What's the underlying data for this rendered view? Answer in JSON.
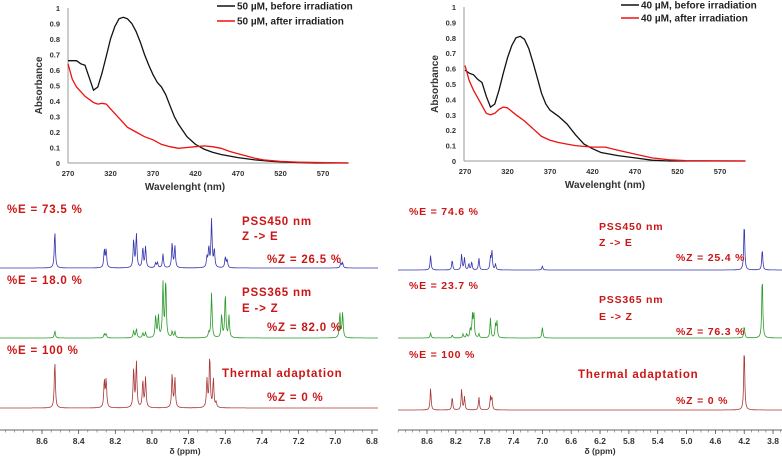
{
  "chart_data": [
    {
      "type": "line",
      "xlabel": "Wavelenght (nm)",
      "ylabel": "Absorbance",
      "xlim": [
        270,
        600
      ],
      "ylim": [
        0,
        1
      ],
      "xticks": [
        "270",
        "320",
        "370",
        "420",
        "470",
        "520",
        "570"
      ],
      "yticks": [
        "0",
        "0.1",
        "0.2",
        "0.3",
        "0.4",
        "0.5",
        "0.6",
        "0.7",
        "0.8",
        "0.9",
        "1"
      ],
      "legend_position": "top-right",
      "series": [
        {
          "name": "50 µM, before irradiation",
          "color": "#111111",
          "x": [
            270,
            275,
            280,
            285,
            290,
            295,
            300,
            305,
            310,
            315,
            320,
            325,
            330,
            335,
            340,
            345,
            350,
            355,
            360,
            365,
            370,
            375,
            380,
            385,
            390,
            395,
            400,
            410,
            420,
            430,
            440,
            450,
            470,
            490,
            510,
            530,
            560,
            600
          ],
          "y": [
            0.66,
            0.66,
            0.66,
            0.64,
            0.63,
            0.55,
            0.47,
            0.49,
            0.58,
            0.69,
            0.8,
            0.88,
            0.93,
            0.94,
            0.93,
            0.9,
            0.85,
            0.78,
            0.7,
            0.63,
            0.57,
            0.52,
            0.49,
            0.44,
            0.37,
            0.3,
            0.25,
            0.17,
            0.12,
            0.09,
            0.07,
            0.055,
            0.035,
            0.02,
            0.01,
            0.005,
            0,
            0
          ]
        },
        {
          "name": "50 µM, after irradiation",
          "color": "#ee1111",
          "x": [
            270,
            275,
            280,
            290,
            300,
            305,
            310,
            315,
            320,
            330,
            340,
            350,
            360,
            370,
            380,
            390,
            400,
            410,
            420,
            430,
            440,
            450,
            460,
            470,
            480,
            490,
            500,
            520,
            540,
            600
          ],
          "y": [
            0.64,
            0.54,
            0.49,
            0.43,
            0.39,
            0.38,
            0.385,
            0.38,
            0.35,
            0.29,
            0.23,
            0.2,
            0.17,
            0.15,
            0.12,
            0.105,
            0.095,
            0.1,
            0.105,
            0.11,
            0.105,
            0.095,
            0.075,
            0.06,
            0.045,
            0.03,
            0.02,
            0.01,
            0.005,
            0
          ]
        }
      ]
    },
    {
      "type": "line",
      "xlabel": "Wavelenght (nm)",
      "ylabel": "Absorbance",
      "xlim": [
        270,
        600
      ],
      "ylim": [
        0,
        1
      ],
      "xticks": [
        "270",
        "320",
        "370",
        "420",
        "470",
        "520",
        "570"
      ],
      "yticks": [
        "0",
        "0.1",
        "0.2",
        "0.3",
        "0.4",
        "0.5",
        "0.6",
        "0.7",
        "0.8",
        "0.9",
        "1"
      ],
      "legend_position": "top-right",
      "series": [
        {
          "name": "40 µM, before irradiation",
          "color": "#111111",
          "x": [
            270,
            275,
            280,
            285,
            290,
            295,
            300,
            305,
            310,
            315,
            320,
            325,
            330,
            335,
            340,
            345,
            350,
            355,
            360,
            365,
            370,
            380,
            390,
            400,
            410,
            420,
            430,
            450,
            470,
            490,
            510,
            600
          ],
          "y": [
            0.59,
            0.57,
            0.56,
            0.53,
            0.51,
            0.42,
            0.35,
            0.37,
            0.46,
            0.57,
            0.67,
            0.75,
            0.8,
            0.81,
            0.79,
            0.73,
            0.64,
            0.54,
            0.44,
            0.37,
            0.33,
            0.29,
            0.24,
            0.17,
            0.11,
            0.08,
            0.055,
            0.035,
            0.02,
            0.005,
            0,
            0
          ]
        },
        {
          "name": "40 µM, after irradiation",
          "color": "#ee1111",
          "x": [
            270,
            275,
            280,
            290,
            295,
            300,
            305,
            310,
            315,
            320,
            330,
            340,
            350,
            360,
            370,
            380,
            390,
            400,
            420,
            435,
            450,
            470,
            490,
            510,
            530,
            600
          ],
          "y": [
            0.62,
            0.52,
            0.46,
            0.36,
            0.31,
            0.3,
            0.31,
            0.335,
            0.35,
            0.345,
            0.3,
            0.26,
            0.21,
            0.16,
            0.135,
            0.12,
            0.11,
            0.1,
            0.09,
            0.09,
            0.07,
            0.045,
            0.02,
            0.008,
            0.002,
            0
          ]
        }
      ]
    },
    {
      "type": "line",
      "subtype": "nmr-stacked",
      "xlabel": "δ (ppm)",
      "xlim": [
        8.75,
        6.75
      ],
      "xticks": [
        "8.6",
        "8.4",
        "8.2",
        "8.0",
        "7.8",
        "7.6",
        "7.4",
        "7.2",
        "7.0",
        "6.8"
      ],
      "spectra": [
        {
          "name": "PSS450 nm",
          "color": "#3636b0",
          "labels": [
            "%E = 73.5 %",
            "PSS450 nm",
            "Z  -> E",
            "%Z = 26.5 %"
          ],
          "peaks_ppm": [
            8.53,
            8.26,
            8.25,
            8.1,
            8.085,
            8.05,
            8.035,
            7.98,
            7.97,
            7.94,
            7.89,
            7.875,
            7.7,
            7.69,
            7.675,
            7.66,
            7.6,
            7.59,
            6.97,
            6.96
          ],
          "intensity": [
            37,
            18,
            18,
            28,
            34,
            20,
            21,
            5,
            5,
            14,
            25,
            22,
            10,
            20,
            48,
            18,
            11,
            8,
            5,
            5
          ]
        },
        {
          "name": "PSS365 nm",
          "color": "#2a9a2a",
          "labels": [
            "%E = 18.0 %",
            "PSS365 nm",
            "E -> Z",
            "%Z = 82.0 %"
          ],
          "peaks_ppm": [
            8.53,
            8.26,
            8.25,
            8.1,
            8.085,
            8.05,
            8.035,
            7.98,
            7.965,
            7.94,
            7.925,
            7.89,
            7.875,
            7.69,
            7.675,
            7.62,
            7.6,
            7.58,
            6.975,
            6.96
          ],
          "intensity": [
            7,
            4,
            4,
            7,
            9,
            5,
            5,
            22,
            22,
            54,
            58,
            6,
            6,
            5,
            45,
            23,
            44,
            22,
            25,
            25
          ]
        },
        {
          "name": "Thermal adaptation",
          "color": "#a83838",
          "labels": [
            "%E = 100 %",
            "Thermal adaptation",
            "%Z = 0 %"
          ],
          "peaks_ppm": [
            8.53,
            8.26,
            8.25,
            8.1,
            8.085,
            8.05,
            8.035,
            7.89,
            7.875,
            7.7,
            7.685,
            7.665,
            7.65
          ],
          "intensity": [
            47,
            27,
            28,
            39,
            46,
            27,
            30,
            34,
            30,
            28,
            52,
            29,
            5
          ]
        }
      ]
    },
    {
      "type": "line",
      "subtype": "nmr-stacked",
      "xlabel": "δ (ppm)",
      "xlim": [
        8.8,
        3.7
      ],
      "xticks": [
        "8.6",
        "8.2",
        "7.8",
        "7.4",
        "7.0",
        "6.6",
        "6.2",
        "5.8",
        "5.4",
        "5.0",
        "4.6",
        "4.2",
        "3.8"
      ],
      "spectra": [
        {
          "name": "PSS450 nm",
          "color": "#3636b0",
          "labels": [
            "%E = 74.6 %",
            "PSS450 nm",
            "Z  -> E",
            "%Z = 25.4 %"
          ],
          "peaks_ppm": [
            8.55,
            8.25,
            8.12,
            8.08,
            8.02,
            7.98,
            7.88,
            7.72,
            7.7,
            7.65,
            7.0,
            4.2,
            3.95
          ],
          "intensity": [
            15,
            10,
            16,
            12,
            6,
            8,
            12,
            12,
            19,
            6,
            4,
            48,
            21
          ]
        },
        {
          "name": "PSS365 nm",
          "color": "#2a9a2a",
          "labels": [
            "%E = 23.7 %",
            "PSS365 nm",
            "E -> Z",
            "%Z = 76.3 %"
          ],
          "peaks_ppm": [
            8.55,
            8.25,
            8.1,
            8.05,
            8.0,
            7.97,
            7.95,
            7.88,
            7.72,
            7.65,
            7.63,
            7.0,
            4.2,
            3.95
          ],
          "intensity": [
            5,
            3,
            4,
            4,
            9,
            22,
            24,
            4,
            20,
            13,
            16,
            11,
            12,
            63
          ]
        },
        {
          "name": "Thermal adaptation",
          "color": "#a83838",
          "labels": [
            "%E = 100 %",
            "Thermal adaptation",
            "%Z = 0 %"
          ],
          "peaks_ppm": [
            8.55,
            8.25,
            8.12,
            8.08,
            7.88,
            7.72,
            7.7,
            4.2
          ],
          "intensity": [
            22,
            13,
            21,
            13,
            13,
            13,
            12,
            64
          ]
        }
      ]
    }
  ]
}
